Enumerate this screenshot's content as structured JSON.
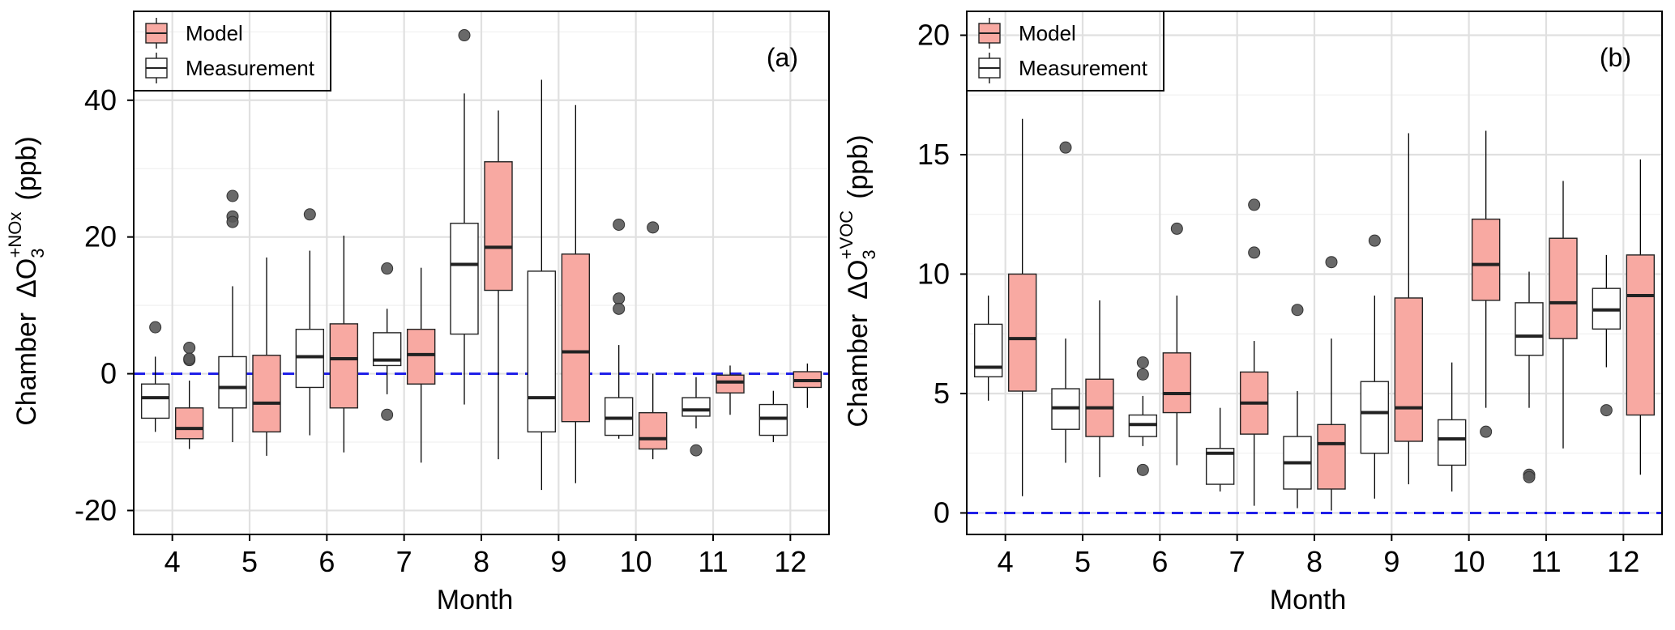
{
  "chart_data": [
    {
      "type": "boxplot",
      "panel_label": "(a)",
      "xlabel": "Month",
      "ylabel_prefix": "Chamber",
      "ylabel_base": "ΔO",
      "ylabel_sub": "3",
      "ylabel_sup": "+NOx",
      "ylabel_unit": "(ppb)",
      "ylim": [
        -23.5,
        53
      ],
      "yticks": [
        -20,
        0,
        20,
        40
      ],
      "reference_line": 0,
      "legend_position": "top-left",
      "categories": [
        "4",
        "5",
        "6",
        "7",
        "8",
        "9",
        "10",
        "11",
        "12"
      ],
      "series": [
        {
          "name": "Measurement",
          "color": "#ffffff",
          "boxes": [
            {
              "min": -8.5,
              "q1": -6.5,
              "median": -3.5,
              "q3": -1.5,
              "max": 2.5,
              "outliers": [
                6.8
              ]
            },
            {
              "min": -10,
              "q1": -5,
              "median": -2,
              "q3": 2.5,
              "max": 12.8,
              "outliers": [
                26,
                23,
                22.2
              ]
            },
            {
              "min": -9,
              "q1": -2,
              "median": 2.5,
              "q3": 6.5,
              "max": 18,
              "outliers": [
                23.3
              ]
            },
            {
              "min": -3,
              "q1": 1.2,
              "median": 2,
              "q3": 6,
              "max": 9.5,
              "outliers": [
                15.4,
                -6
              ]
            },
            {
              "min": -4.5,
              "q1": 5.8,
              "median": 16,
              "q3": 22,
              "max": 41,
              "outliers": [
                49.5
              ]
            },
            {
              "min": -17,
              "q1": -8.5,
              "median": -3.5,
              "q3": 15,
              "max": 43,
              "outliers": []
            },
            {
              "min": -9.5,
              "q1": -9,
              "median": -6.5,
              "q3": -3.5,
              "max": 4.2,
              "outliers": [
                21.8,
                11,
                9.5
              ]
            },
            {
              "min": -8,
              "q1": -6.2,
              "median": -5.3,
              "q3": -3.5,
              "max": -0.5,
              "outliers": [
                -11.2
              ]
            },
            {
              "min": -10,
              "q1": -9,
              "median": -6.5,
              "q3": -4.5,
              "max": -2.5,
              "outliers": []
            }
          ]
        },
        {
          "name": "Model",
          "color": "#f8a9a2",
          "boxes": [
            {
              "min": -11,
              "q1": -9.5,
              "median": -8,
              "q3": -5,
              "max": -1,
              "outliers": [
                3.8,
                2,
                2.2
              ]
            },
            {
              "min": -12,
              "q1": -8.5,
              "median": -4.3,
              "q3": 2.7,
              "max": 17,
              "outliers": []
            },
            {
              "min": -11.5,
              "q1": -5,
              "median": 2.2,
              "q3": 7.3,
              "max": 20.2,
              "outliers": []
            },
            {
              "min": -13,
              "q1": -1.5,
              "median": 2.8,
              "q3": 6.5,
              "max": 15.5,
              "outliers": []
            },
            {
              "min": -12.5,
              "q1": 12.2,
              "median": 18.5,
              "q3": 31,
              "max": 38.5,
              "outliers": []
            },
            {
              "min": -16,
              "q1": -7,
              "median": 3.2,
              "q3": 17.5,
              "max": 39.3,
              "outliers": []
            },
            {
              "min": -12.5,
              "q1": -11,
              "median": -9.5,
              "q3": -5.7,
              "max": 0,
              "outliers": [
                21.4
              ]
            },
            {
              "min": -6,
              "q1": -2.8,
              "median": -1.2,
              "q3": -0.2,
              "max": 1.2,
              "outliers": []
            },
            {
              "min": -5,
              "q1": -2,
              "median": -1,
              "q3": 0.3,
              "max": 1.5,
              "outliers": []
            }
          ]
        }
      ]
    },
    {
      "type": "boxplot",
      "panel_label": "(b)",
      "xlabel": "Month",
      "ylabel_prefix": "Chamber",
      "ylabel_base": "ΔO",
      "ylabel_sub": "3",
      "ylabel_sup": "+VOC",
      "ylabel_unit": "(ppb)",
      "ylim": [
        -0.9,
        21
      ],
      "yticks": [
        0,
        5,
        10,
        15,
        20
      ],
      "reference_line": 0,
      "legend_position": "top-left",
      "categories": [
        "4",
        "5",
        "6",
        "7",
        "8",
        "9",
        "10",
        "11",
        "12"
      ],
      "series": [
        {
          "name": "Measurement",
          "color": "#ffffff",
          "boxes": [
            {
              "min": 4.7,
              "q1": 5.7,
              "median": 6.1,
              "q3": 7.9,
              "max": 9.1,
              "outliers": []
            },
            {
              "min": 2.1,
              "q1": 3.5,
              "median": 4.4,
              "q3": 5.2,
              "max": 7.3,
              "outliers": [
                15.3
              ]
            },
            {
              "min": 2.8,
              "q1": 3.2,
              "median": 3.7,
              "q3": 4.1,
              "max": 4.9,
              "outliers": [
                6.3,
                5.8,
                1.8
              ]
            },
            {
              "min": 0.9,
              "q1": 1.2,
              "median": 2.5,
              "q3": 2.7,
              "max": 4.4,
              "outliers": []
            },
            {
              "min": 0.2,
              "q1": 1,
              "median": 2.1,
              "q3": 3.2,
              "max": 5.1,
              "outliers": [
                8.5
              ]
            },
            {
              "min": 0.6,
              "q1": 2.5,
              "median": 4.2,
              "q3": 5.5,
              "max": 9.1,
              "outliers": [
                11.4
              ]
            },
            {
              "min": 0.9,
              "q1": 2,
              "median": 3.1,
              "q3": 3.9,
              "max": 6.3,
              "outliers": []
            },
            {
              "min": 4.4,
              "q1": 6.6,
              "median": 7.4,
              "q3": 8.8,
              "max": 10.1,
              "outliers": [
                1.6,
                1.5
              ]
            },
            {
              "min": 6.1,
              "q1": 7.7,
              "median": 8.5,
              "q3": 9.4,
              "max": 10.8,
              "outliers": [
                4.3
              ]
            }
          ]
        },
        {
          "name": "Model",
          "color": "#f8a9a2",
          "boxes": [
            {
              "min": 0.7,
              "q1": 5.1,
              "median": 7.3,
              "q3": 10,
              "max": 16.5,
              "outliers": []
            },
            {
              "min": 1.5,
              "q1": 3.2,
              "median": 4.4,
              "q3": 5.6,
              "max": 8.9,
              "outliers": []
            },
            {
              "min": 2,
              "q1": 4.2,
              "median": 5,
              "q3": 6.7,
              "max": 9.1,
              "outliers": [
                11.9
              ]
            },
            {
              "min": 0.3,
              "q1": 3.3,
              "median": 4.6,
              "q3": 5.9,
              "max": 7.2,
              "outliers": [
                12.9,
                10.9
              ]
            },
            {
              "min": 0.1,
              "q1": 1,
              "median": 2.9,
              "q3": 3.7,
              "max": 7.3,
              "outliers": [
                10.5
              ]
            },
            {
              "min": 1.2,
              "q1": 3,
              "median": 4.4,
              "q3": 9,
              "max": 15.9,
              "outliers": []
            },
            {
              "min": 4.4,
              "q1": 8.9,
              "median": 10.4,
              "q3": 12.3,
              "max": 16,
              "outliers": [
                3.4
              ]
            },
            {
              "min": 2.7,
              "q1": 7.3,
              "median": 8.8,
              "q3": 11.5,
              "max": 13.9,
              "outliers": []
            },
            {
              "min": 1.6,
              "q1": 4.1,
              "median": 9.1,
              "q3": 10.8,
              "max": 14.8,
              "outliers": []
            }
          ]
        }
      ]
    }
  ]
}
